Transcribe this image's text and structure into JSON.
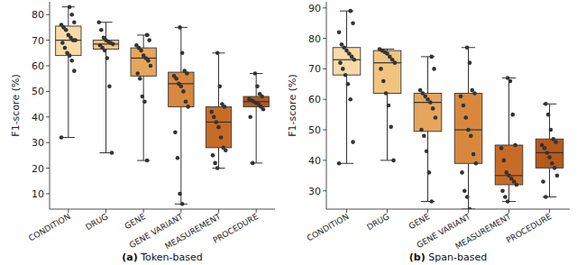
{
  "chart_data": [
    {
      "type": "box",
      "title": "(a) Token-based",
      "y_label": "F1-score (%)",
      "categories": [
        "CONDITION",
        "DRUG",
        "GENE",
        "GENE VARIANT",
        "MEASUREMENT",
        "PROCEDURE"
      ],
      "colors": [
        "#f6dba8",
        "#f0c47f",
        "#e6a55c",
        "#d8883e",
        "#c76c27",
        "#b6591c"
      ],
      "ylim": [
        4,
        85
      ],
      "yticks": [
        10,
        20,
        30,
        40,
        50,
        60,
        70,
        80
      ],
      "grid": false,
      "stats": [
        {
          "low": 32,
          "q1": 64,
          "median": 70,
          "q3": 75.5,
          "high": 83,
          "points": [
            32,
            58,
            62,
            64,
            65,
            67,
            69,
            70,
            70,
            71,
            72,
            74,
            75,
            76,
            77,
            80,
            83
          ]
        },
        {
          "low": 26,
          "q1": 66.5,
          "median": 68.5,
          "q3": 70,
          "high": 77,
          "points": [
            26,
            52,
            63,
            66,
            67,
            68,
            68.5,
            69,
            69.5,
            70,
            71,
            74,
            77
          ]
        },
        {
          "low": 23,
          "q1": 56,
          "median": 63,
          "q3": 67,
          "high": 72,
          "points": [
            23,
            46,
            48,
            55,
            57,
            60,
            62,
            63,
            64,
            66,
            67,
            68,
            70,
            72
          ]
        },
        {
          "low": 6,
          "q1": 44,
          "median": 53,
          "q3": 57.5,
          "high": 75,
          "points": [
            6,
            10,
            24,
            34,
            44,
            46,
            50,
            52,
            53,
            55,
            56,
            57,
            58,
            65,
            75
          ]
        },
        {
          "low": 20,
          "q1": 28,
          "median": 38,
          "q3": 44,
          "high": 65,
          "points": [
            20,
            22,
            25,
            27,
            28,
            32,
            36,
            38,
            40,
            42,
            44,
            45,
            52,
            65
          ]
        },
        {
          "low": 22,
          "q1": 44,
          "median": 46,
          "q3": 48,
          "high": 57,
          "points": [
            22,
            40,
            43,
            44,
            45,
            45.5,
            46,
            46.5,
            47,
            48,
            49,
            52,
            57
          ]
        }
      ]
    },
    {
      "type": "box",
      "title": "(b) Span-based",
      "y_label": "F1-score (%)",
      "categories": [
        "CONDITION",
        "DRUG",
        "GENE",
        "GENE VARIANT",
        "MEASUREMENT",
        "PROCEDURE"
      ],
      "colors": [
        "#f6dba8",
        "#f0c47f",
        "#e6a55c",
        "#d8883e",
        "#c76c27",
        "#b6591c"
      ],
      "ylim": [
        24,
        92
      ],
      "yticks": [
        30,
        40,
        50,
        60,
        70,
        80,
        90
      ],
      "grid": false,
      "stats": [
        {
          "low": 39,
          "q1": 68,
          "median": 73,
          "q3": 77,
          "high": 89,
          "points": [
            39,
            46,
            60,
            65,
            68,
            70,
            72,
            73,
            74,
            75,
            76,
            77,
            78,
            82,
            85,
            89
          ]
        },
        {
          "low": 40,
          "q1": 62,
          "median": 72,
          "q3": 76,
          "high": 76.5,
          "points": [
            40,
            51,
            58,
            62,
            66,
            70,
            72,
            73,
            74,
            75,
            75.5,
            76,
            76.5
          ]
        },
        {
          "low": 26.5,
          "q1": 49.5,
          "median": 59,
          "q3": 62,
          "high": 74,
          "points": [
            26.5,
            36,
            43,
            48,
            50,
            54,
            57,
            59,
            60,
            61,
            62,
            63,
            70,
            74
          ]
        },
        {
          "low": 24,
          "q1": 39,
          "median": 50,
          "q3": 62,
          "high": 77,
          "points": [
            24,
            28,
            30,
            36,
            39,
            42,
            48,
            50,
            54,
            58,
            61,
            62,
            63,
            72,
            77
          ]
        },
        {
          "low": 26.5,
          "q1": 32,
          "median": 35,
          "q3": 45,
          "high": 67,
          "points": [
            26.5,
            28,
            30,
            32,
            33,
            34,
            35,
            36,
            40,
            44,
            45,
            55,
            66,
            67
          ]
        },
        {
          "low": 28,
          "q1": 37.5,
          "median": 42.5,
          "q3": 47,
          "high": 58.5,
          "points": [
            28,
            33,
            35,
            37.5,
            39,
            41,
            42.5,
            44,
            45,
            46,
            47,
            50,
            55,
            58.5
          ]
        }
      ]
    }
  ]
}
